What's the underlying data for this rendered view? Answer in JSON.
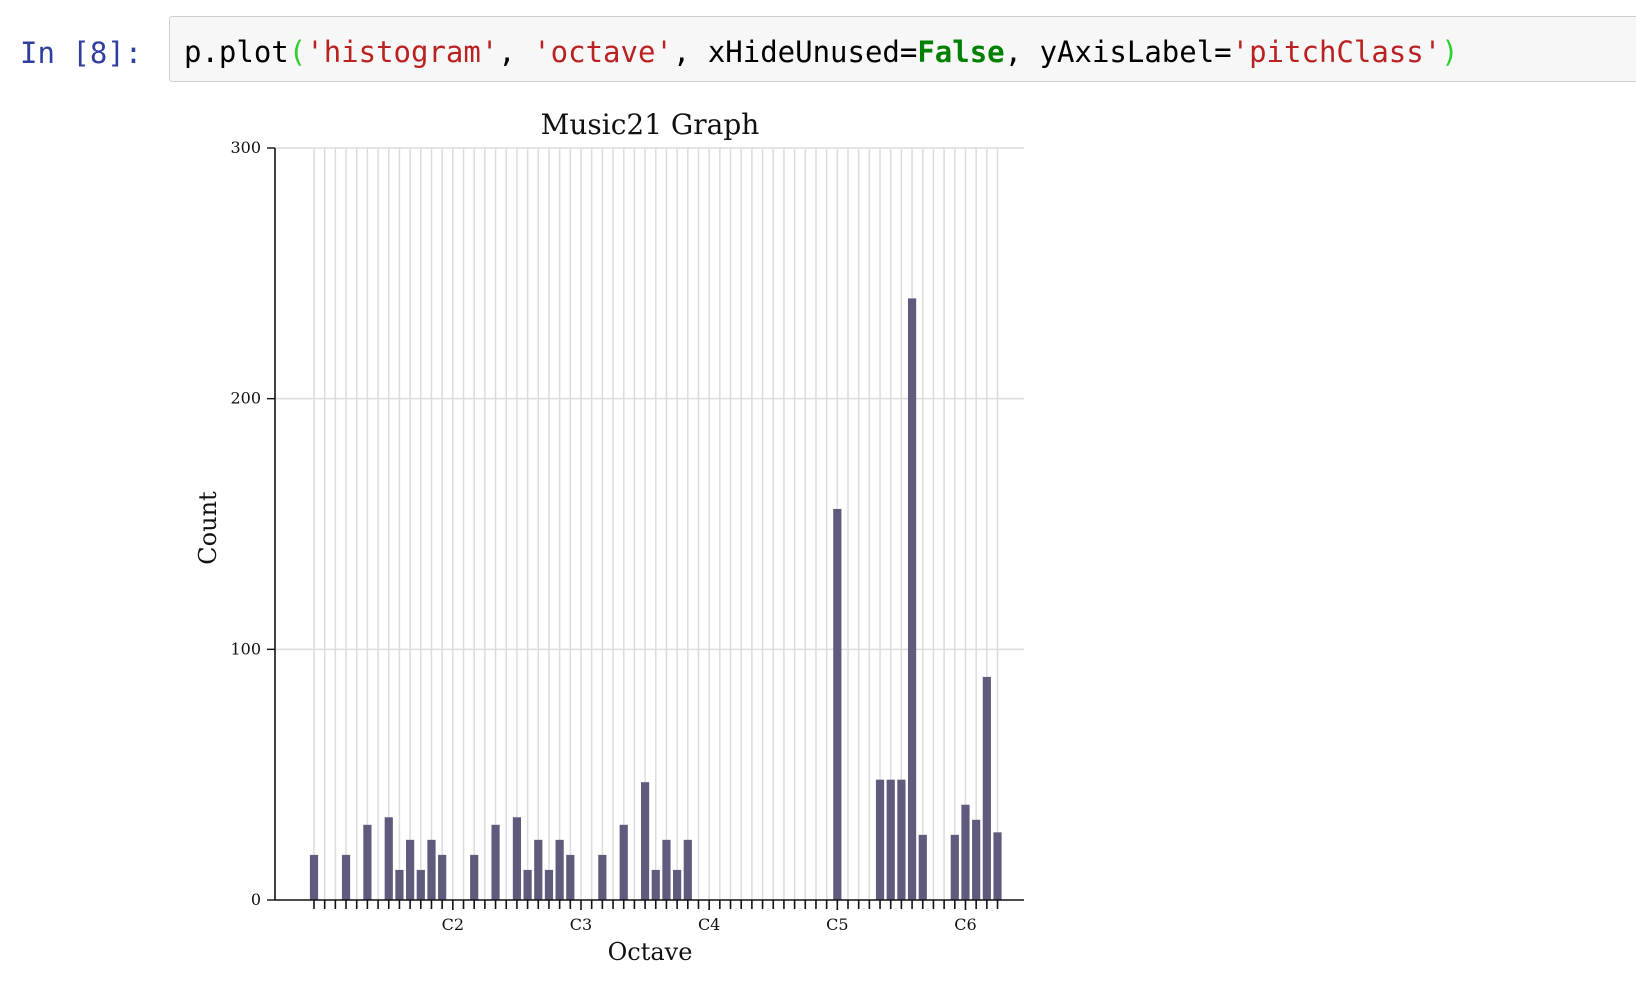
{
  "cell": {
    "prompt": "In [8]:",
    "code_tokens": [
      {
        "text": "p.plot",
        "kind": "plain"
      },
      {
        "text": "(",
        "kind": "paren"
      },
      {
        "text": "'histogram'",
        "kind": "str"
      },
      {
        "text": ", ",
        "kind": "plain"
      },
      {
        "text": "'octave'",
        "kind": "str"
      },
      {
        "text": ", xHideUnused=",
        "kind": "plain"
      },
      {
        "text": "False",
        "kind": "kw"
      },
      {
        "text": ", yAxisLabel=",
        "kind": "plain"
      },
      {
        "text": "'pitchClass'",
        "kind": "str"
      },
      {
        "text": ")",
        "kind": "paren"
      }
    ]
  },
  "colors": {
    "bar": "#5f5b7d",
    "grid": "#dcdcdc",
    "axis": "#111111"
  },
  "chart_data": {
    "type": "bar",
    "title": "Music21 Graph",
    "xlabel": "Octave",
    "ylabel": "Count",
    "ylim": [
      0,
      300
    ],
    "yticks": [
      0,
      100,
      200,
      300
    ],
    "grid": true,
    "x_labeled_ticks": [
      {
        "index": 13,
        "label": "C2"
      },
      {
        "index": 25,
        "label": "C3"
      },
      {
        "index": 37,
        "label": "C4"
      },
      {
        "index": 49,
        "label": "C5"
      },
      {
        "index": 61,
        "label": "C6"
      }
    ],
    "values": [
      18,
      0,
      0,
      18,
      0,
      30,
      0,
      33,
      12,
      24,
      12,
      24,
      18,
      0,
      0,
      18,
      0,
      30,
      0,
      33,
      12,
      24,
      12,
      24,
      18,
      0,
      0,
      18,
      0,
      30,
      0,
      47,
      12,
      24,
      12,
      24,
      0,
      0,
      0,
      0,
      0,
      0,
      0,
      0,
      0,
      0,
      0,
      0,
      0,
      156,
      0,
      0,
      0,
      48,
      48,
      48,
      240,
      26,
      0,
      0,
      26,
      38,
      32,
      89,
      27
    ]
  }
}
